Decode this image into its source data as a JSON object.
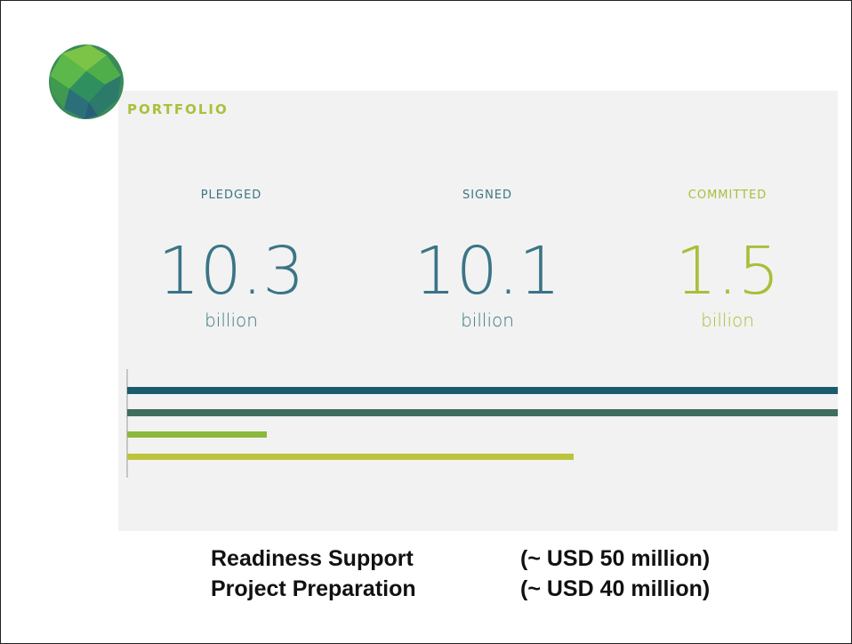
{
  "header": {
    "title": "PORTFOLIO"
  },
  "metrics": [
    {
      "label": "PLEDGED",
      "value": "10.3",
      "unit": "billion"
    },
    {
      "label": "SIGNED",
      "value": "10.1",
      "unit": "billion"
    },
    {
      "label": "COMMITTED",
      "value": "1.5",
      "unit": "billion"
    }
  ],
  "notes": [
    {
      "name": "Readiness Support",
      "amount": "(~ USD 50 million)"
    },
    {
      "name": "Project Preparation",
      "amount": "(~ USD 40 million)"
    }
  ]
}
